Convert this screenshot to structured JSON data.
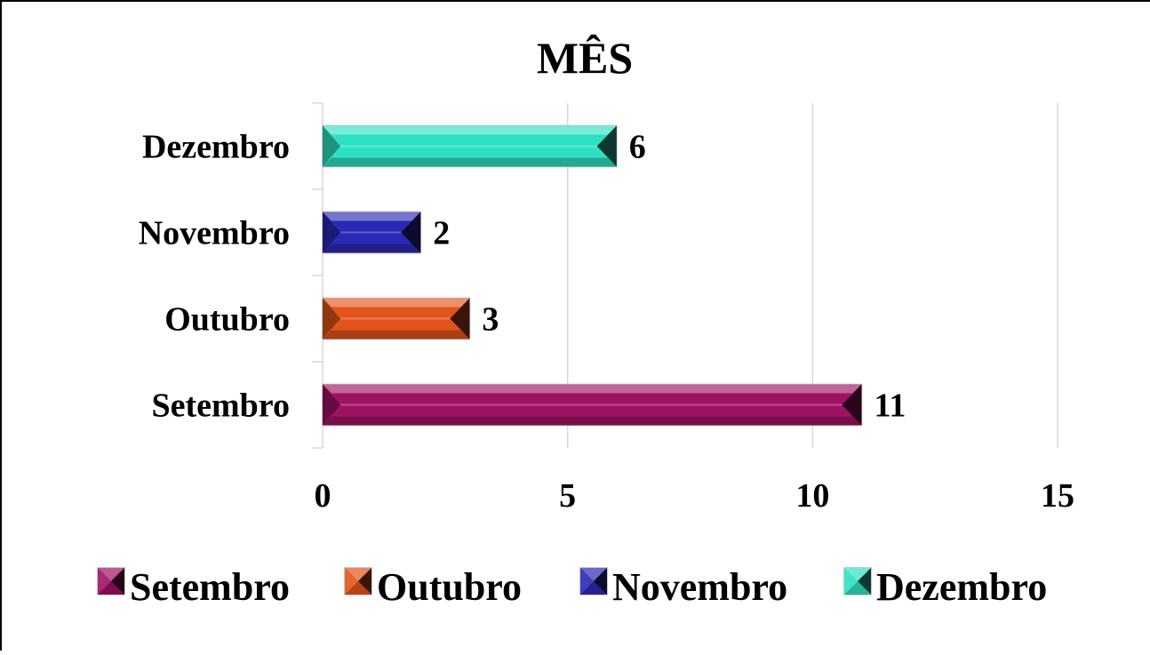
{
  "chart_data": {
    "type": "bar",
    "orientation": "horizontal",
    "title": "MÊS",
    "categories": [
      "Setembro",
      "Outubro",
      "Novembro",
      "Dezembro"
    ],
    "values": [
      11,
      3,
      2,
      6
    ],
    "data_labels": [
      "11",
      "3",
      "2",
      "6"
    ],
    "xlim": [
      0,
      15
    ],
    "x_ticks": [
      "0",
      "5",
      "10",
      "15"
    ],
    "grid": "vertical",
    "legend": {
      "placement": "bottom",
      "entries": [
        "Setembro",
        "Outubro",
        "Novembro",
        "Dezembro"
      ]
    },
    "colors": [
      "#9e1262",
      "#e2541b",
      "#2a2ab4",
      "#2ee0c2"
    ]
  }
}
